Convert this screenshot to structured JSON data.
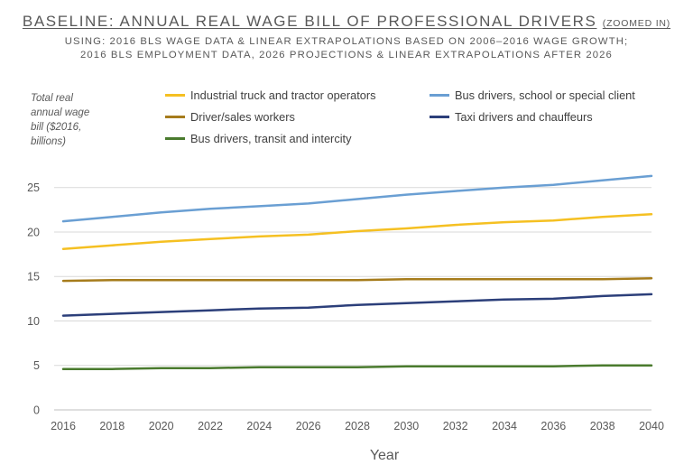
{
  "header": {
    "title_main": "BASELINE: ANNUAL REAL WAGE BILL OF PROFESSIONAL DRIVERS",
    "title_note": "(ZOOMED IN)",
    "subtitle_line1": "USING: 2016 BLS WAGE DATA & LINEAR EXTRAPOLATIONS BASED ON 2006–2016 WAGE GROWTH;",
    "subtitle_line2": "2016 BLS EMPLOYMENT DATA, 2026 PROJECTIONS & LINEAR EXTRAPOLATIONS AFTER 2026"
  },
  "chart_data": {
    "type": "line",
    "title": "BASELINE: ANNUAL REAL WAGE BILL OF PROFESSIONAL DRIVERS (ZOOMED IN)",
    "ylabel": "Total real annual wage bill ($2016, billions)",
    "xlabel": "Year",
    "ylim": [
      0,
      27
    ],
    "xlim": [
      2016,
      2040
    ],
    "yticks": [
      0,
      5,
      10,
      15,
      20,
      25
    ],
    "xticks": [
      2016,
      2018,
      2020,
      2022,
      2024,
      2026,
      2028,
      2030,
      2032,
      2034,
      2036,
      2038,
      2040
    ],
    "grid": "horizontal",
    "legend_position": "top",
    "x": [
      2016,
      2018,
      2020,
      2022,
      2024,
      2026,
      2028,
      2030,
      2032,
      2034,
      2036,
      2038,
      2040
    ],
    "series": [
      {
        "name": "Industrial truck and tractor operators",
        "color": "#f5c022",
        "values": [
          18.1,
          18.5,
          18.9,
          19.2,
          19.5,
          19.7,
          20.1,
          20.4,
          20.8,
          21.1,
          21.3,
          21.7,
          22.0
        ]
      },
      {
        "name": "Bus drivers, school or special client",
        "color": "#6a9fd3",
        "values": [
          21.2,
          21.7,
          22.2,
          22.6,
          22.9,
          23.2,
          23.7,
          24.2,
          24.6,
          25.0,
          25.3,
          25.8,
          26.3
        ]
      },
      {
        "name": "Driver/sales workers",
        "color": "#a67c1c",
        "values": [
          14.5,
          14.6,
          14.6,
          14.6,
          14.6,
          14.6,
          14.6,
          14.7,
          14.7,
          14.7,
          14.7,
          14.7,
          14.8
        ]
      },
      {
        "name": "Taxi drivers and chauffeurs",
        "color": "#2c3f7a",
        "values": [
          10.6,
          10.8,
          11.0,
          11.2,
          11.4,
          11.5,
          11.8,
          12.0,
          12.2,
          12.4,
          12.5,
          12.8,
          13.0
        ]
      },
      {
        "name": "Bus drivers, transit and intercity",
        "color": "#4a7b2e",
        "values": [
          4.6,
          4.6,
          4.7,
          4.7,
          4.8,
          4.8,
          4.8,
          4.9,
          4.9,
          4.9,
          4.9,
          5.0,
          5.0
        ]
      }
    ]
  }
}
